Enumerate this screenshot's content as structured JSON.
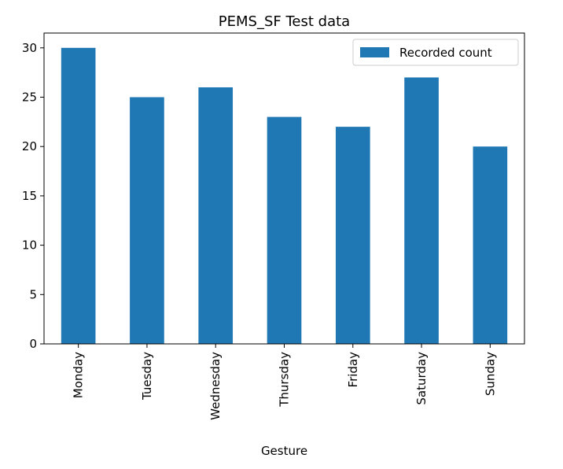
{
  "chart_data": {
    "type": "bar",
    "title": "PEMS_SF Test data",
    "xlabel": "Gesture",
    "ylabel": "",
    "categories": [
      "Monday",
      "Tuesday",
      "Wednesday",
      "Thursday",
      "Friday",
      "Saturday",
      "Sunday"
    ],
    "series": [
      {
        "name": "Recorded count",
        "values": [
          30,
          25,
          26,
          23,
          22,
          27,
          20
        ],
        "color": "#1f77b4"
      }
    ],
    "ylim": [
      0,
      31.5
    ],
    "yticks": [
      0,
      5,
      10,
      15,
      20,
      25,
      30
    ],
    "grid": false,
    "legend_position": "top-right"
  }
}
